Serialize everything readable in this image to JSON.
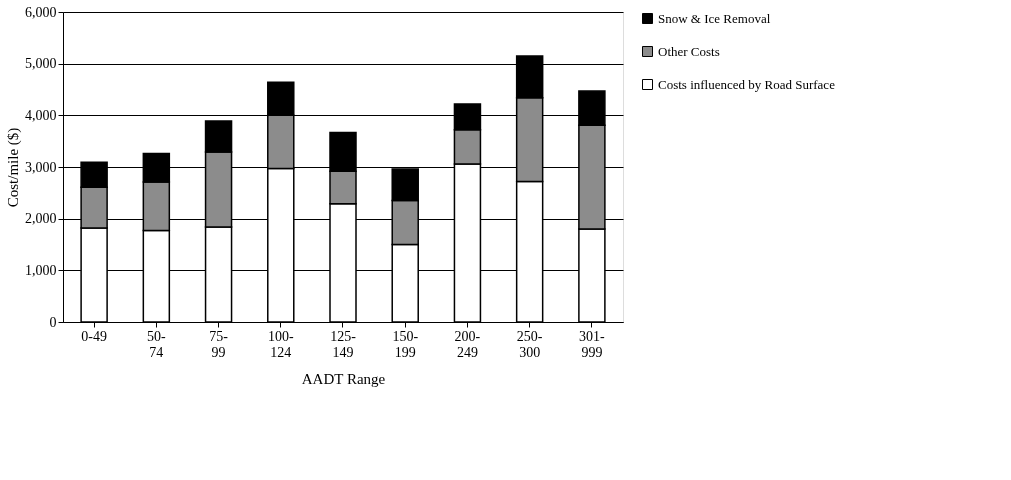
{
  "chart_data": {
    "type": "bar",
    "stacked": true,
    "xlabel": "AADT Range",
    "ylabel": "Cost/mile ($)",
    "categories": [
      "0-49",
      "50-\n74",
      "75-\n99",
      "100-\n124",
      "125-\n149",
      "150-\n199",
      "200-\n249",
      "250-\n300",
      "301-\n999"
    ],
    "series": [
      {
        "name": "Costs influenced by Road Surface",
        "color": "#ffffff",
        "values": [
          1820,
          1770,
          1840,
          2970,
          2290,
          1500,
          3060,
          2720,
          1800
        ]
      },
      {
        "name": "Other Costs",
        "color": "#8c8c8c",
        "values": [
          790,
          940,
          1450,
          1030,
          630,
          850,
          660,
          1620,
          2010
        ]
      },
      {
        "name": "Snow & Ice Removal",
        "color": "#000000",
        "values": [
          480,
          550,
          600,
          640,
          750,
          610,
          500,
          810,
          660
        ]
      }
    ],
    "ylim": [
      0,
      6000
    ],
    "yticks": [
      0,
      {
        "value": 1000,
        "label": "1,000"
      },
      {
        "value": 2000,
        "label": "2,000"
      },
      {
        "value": 3000,
        "label": "3,000"
      },
      {
        "value": 4000,
        "label": "4,000"
      },
      {
        "value": 5000,
        "label": "5,000"
      },
      {
        "value": 6000,
        "label": "6,000"
      }
    ],
    "grid": "y",
    "legend": "right"
  }
}
